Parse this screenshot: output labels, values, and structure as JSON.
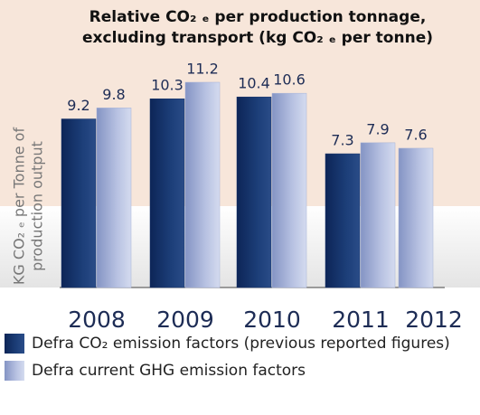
{
  "chart_data": {
    "type": "bar",
    "title_lines": [
      "Relative CO₂ ₑ per production tonnage,",
      "excluding transport (kg CO₂ ₑ per tonne)"
    ],
    "y_label_lines": [
      "KG CO₂ ₑ per Tonne of",
      "production output"
    ],
    "categories": [
      "2008",
      "2009",
      "2010",
      "2011",
      "2012"
    ],
    "series": [
      {
        "name": "Defra CO₂ emission factors (previous reported figures)",
        "color": "#16336a",
        "values": [
          9.2,
          10.3,
          10.4,
          7.3,
          null
        ]
      },
      {
        "name": "Defra current GHG emission factors",
        "color": "#a3b0d6",
        "values": [
          9.8,
          11.2,
          10.6,
          7.9,
          7.6
        ]
      }
    ]
  }
}
